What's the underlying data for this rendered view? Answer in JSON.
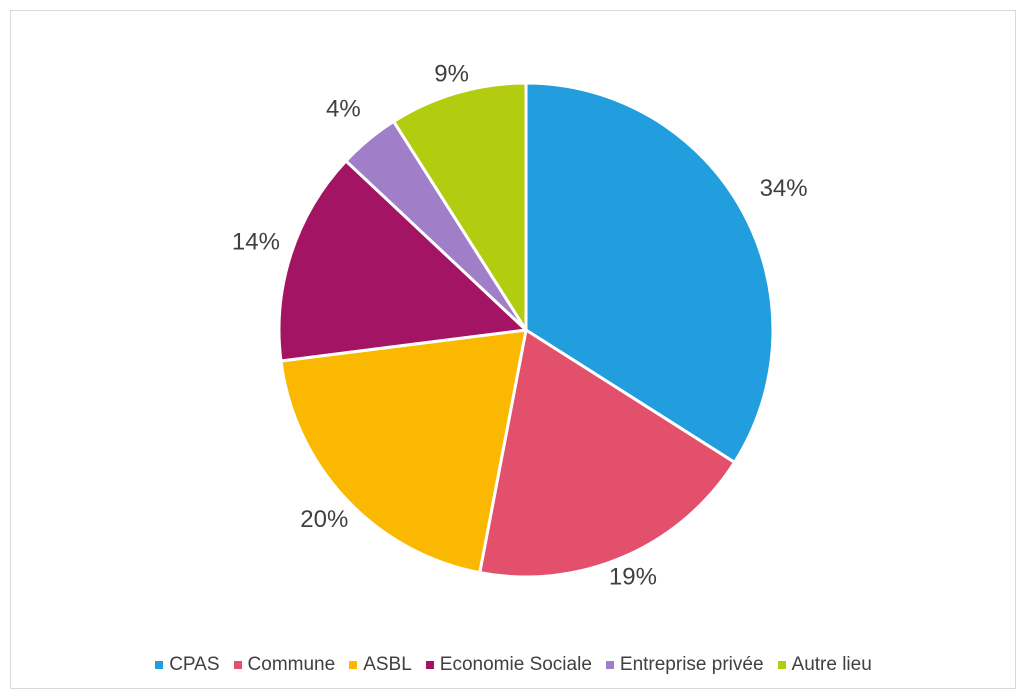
{
  "chart_data": {
    "type": "pie",
    "title": "",
    "categories": [
      "CPAS",
      "Commune",
      "ASBL",
      "Economie Sociale",
      "Entreprise privée",
      "Autre lieu"
    ],
    "values": [
      34,
      19,
      20,
      14,
      4,
      9
    ],
    "labels": [
      "34%",
      "19%",
      "20%",
      "14%",
      "4%",
      "9%"
    ],
    "colors": [
      "#229ddd",
      "#e2506b",
      "#fab900",
      "#a31564",
      "#a07fc8",
      "#b2cc0f"
    ],
    "legend": "bottom"
  }
}
